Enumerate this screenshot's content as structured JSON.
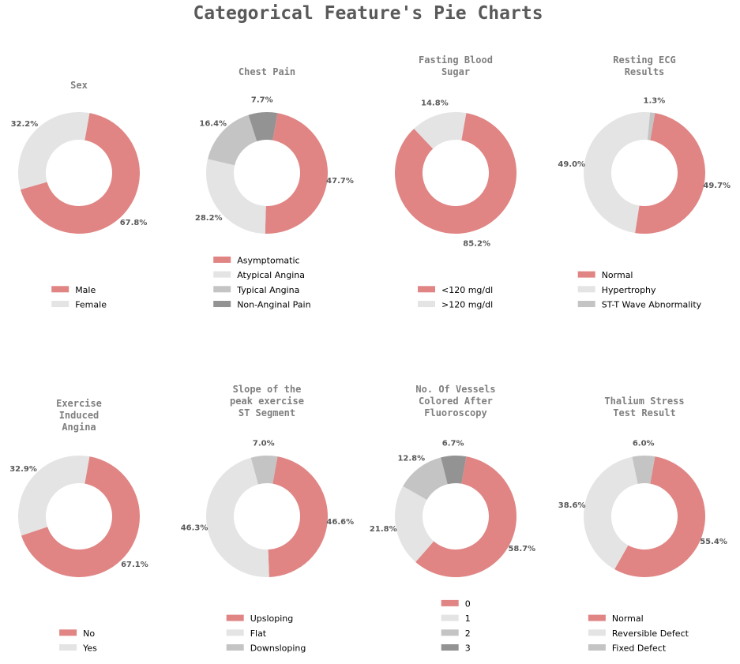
{
  "suptitle": "Categorical Feature's Pie Charts",
  "colors": [
    "#e08584",
    "#e4e4e4",
    "#c4c4c4",
    "#939393"
  ],
  "chart_data": [
    {
      "type": "pie",
      "title": "Sex",
      "categories": [
        "Male",
        "Female"
      ],
      "values": [
        67.8,
        32.2
      ],
      "labels": [
        "67.8%",
        "32.2%"
      ],
      "legend": true
    },
    {
      "type": "pie",
      "title": "Chest Pain",
      "categories": [
        "Asymptomatic",
        "Atypical Angina",
        "Typical Angina",
        "Non-Anginal Pain"
      ],
      "values": [
        47.7,
        28.2,
        16.4,
        7.7
      ],
      "labels": [
        "47.7%",
        "28.2%",
        "16.4%",
        "7.7%"
      ],
      "legend": true
    },
    {
      "type": "pie",
      "title": "Fasting Blood\nSugar",
      "categories": [
        "<120 mg/dl",
        ">120 mg/dl"
      ],
      "values": [
        85.2,
        14.8
      ],
      "labels": [
        "85.2%",
        "14.8%"
      ],
      "legend": true
    },
    {
      "type": "pie",
      "title": "Resting ECG\nResults",
      "categories": [
        "Normal",
        "Hypertrophy",
        "ST-T Wave Abnormality"
      ],
      "values": [
        49.7,
        49.0,
        1.3
      ],
      "labels": [
        "49.7%",
        "49.0%",
        "1.3%"
      ],
      "legend": true
    },
    {
      "type": "pie",
      "title": "Exercise\nInduced\nAngina",
      "categories": [
        "No",
        "Yes"
      ],
      "values": [
        67.1,
        32.9
      ],
      "labels": [
        "67.1%",
        "32.9%"
      ],
      "legend": true
    },
    {
      "type": "pie",
      "title": "Slope of the\npeak exercise\nST Segment",
      "categories": [
        "Upsloping",
        "Flat",
        "Downsloping"
      ],
      "values": [
        46.6,
        46.3,
        7.0
      ],
      "labels": [
        "46.6%",
        "46.3%",
        "7.0%"
      ],
      "legend": true
    },
    {
      "type": "pie",
      "title": "No. Of Vessels\nColored After\nFluoroscopy",
      "categories": [
        "0",
        "1",
        "2",
        "3"
      ],
      "values": [
        58.7,
        21.8,
        12.8,
        6.7
      ],
      "labels": [
        "58.7%",
        "21.8%",
        "12.8%",
        "6.7%"
      ],
      "legend": true
    },
    {
      "type": "pie",
      "title": "Thalium Stress\nTest Result",
      "categories": [
        "Normal",
        "Reversible Defect",
        "Fixed Defect"
      ],
      "values": [
        55.4,
        38.6,
        6.0
      ],
      "labels": [
        "55.4%",
        "38.6%",
        "6.0%"
      ],
      "legend": true
    }
  ]
}
